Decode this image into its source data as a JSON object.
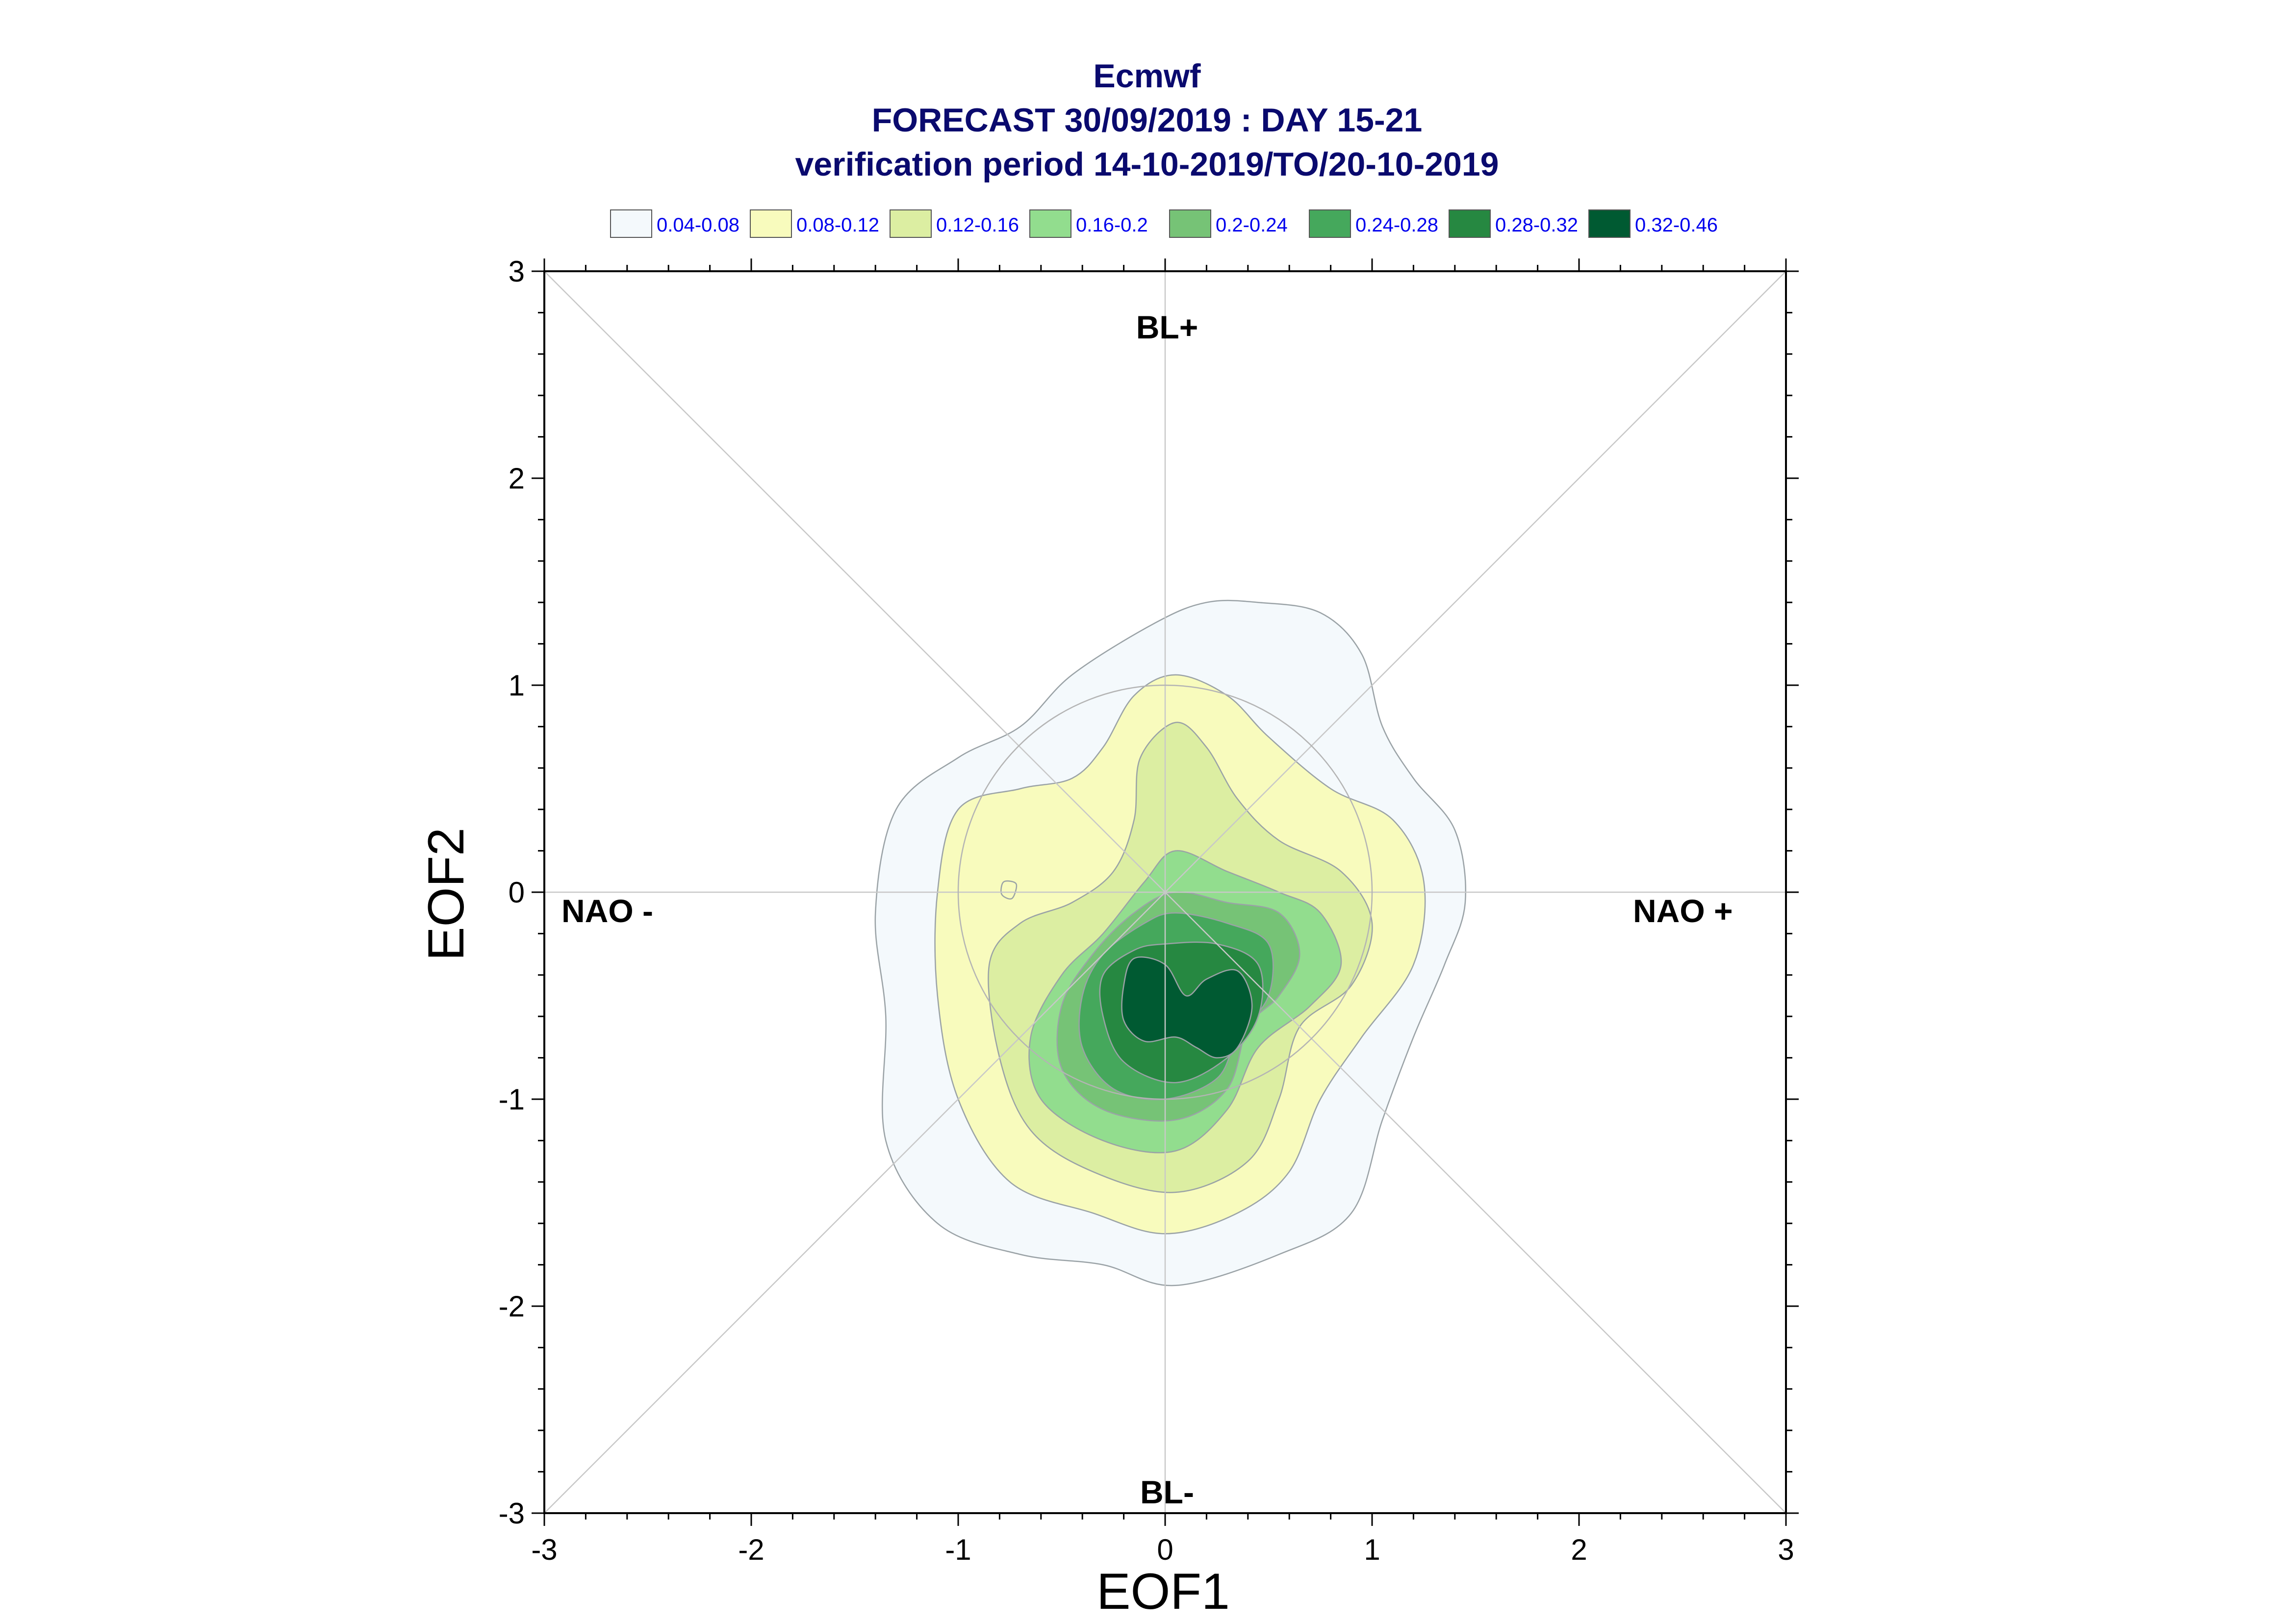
{
  "chart_data": {
    "type": "contour",
    "title": "Ecmwf",
    "subtitle_1": "FORECAST 30/09/2019 : DAY 15-21",
    "subtitle_2": "verification period 14-10-2019/TO/20-10-2019",
    "xlabel": "EOF1",
    "ylabel": "EOF2",
    "xlim": [
      -3,
      3
    ],
    "ylim": [
      -3,
      3
    ],
    "x_ticks": [
      -3,
      -2,
      -1,
      0,
      1,
      2,
      3
    ],
    "y_ticks": [
      -3,
      -2,
      -1,
      0,
      1,
      2,
      3
    ],
    "x_tick_labels": [
      "-3",
      "-2",
      "-1",
      "0",
      "1",
      "2",
      "3"
    ],
    "y_tick_labels": [
      "-3",
      "-2",
      "-1",
      "0",
      "1",
      "2",
      "3"
    ],
    "regions": {
      "top": "BL+",
      "bottom": "BL-",
      "left": "NAO -",
      "right": "NAO +"
    },
    "unit_circle_radius": 1,
    "grid": false,
    "legend_position": "top",
    "levels": [
      {
        "label": "0.04-0.08",
        "color": "#f4f9fc"
      },
      {
        "label": "0.08-0.12",
        "color": "#f8fbbd"
      },
      {
        "label": "0.12-0.16",
        "color": "#dceea2"
      },
      {
        "label": "0.16-0.2",
        "color": "#92dd8e"
      },
      {
        "label": "0.2-0.24",
        "color": "#76c376"
      },
      {
        "label": "0.24-0.28",
        "color": "#45a85c"
      },
      {
        "label": "0.28-0.32",
        "color": "#268841"
      },
      {
        "label": "0.32-0.46",
        "color": "#005a32"
      }
    ],
    "contours": [
      {
        "level": 0,
        "points": [
          [
            0.45,
            1.4
          ],
          [
            0.75,
            1.35
          ],
          [
            0.95,
            1.15
          ],
          [
            1.05,
            0.8
          ],
          [
            1.2,
            0.55
          ],
          [
            1.4,
            0.3
          ],
          [
            1.45,
            -0.05
          ],
          [
            1.35,
            -0.35
          ],
          [
            1.2,
            -0.7
          ],
          [
            1.05,
            -1.1
          ],
          [
            0.9,
            -1.55
          ],
          [
            0.55,
            -1.75
          ],
          [
            0.05,
            -1.9
          ],
          [
            -0.3,
            -1.8
          ],
          [
            -0.7,
            -1.75
          ],
          [
            -1.1,
            -1.6
          ],
          [
            -1.35,
            -1.2
          ],
          [
            -1.35,
            -0.6
          ],
          [
            -1.4,
            -0.1
          ],
          [
            -1.3,
            0.4
          ],
          [
            -1.0,
            0.65
          ],
          [
            -0.7,
            0.8
          ],
          [
            -0.45,
            1.05
          ],
          [
            -0.05,
            1.3
          ],
          [
            0.2,
            1.4
          ]
        ]
      },
      {
        "level": 1,
        "points": [
          [
            0.05,
            1.05
          ],
          [
            0.3,
            0.95
          ],
          [
            0.5,
            0.75
          ],
          [
            0.8,
            0.5
          ],
          [
            1.1,
            0.35
          ],
          [
            1.25,
            0.05
          ],
          [
            1.2,
            -0.35
          ],
          [
            0.95,
            -0.7
          ],
          [
            0.75,
            -1.0
          ],
          [
            0.6,
            -1.35
          ],
          [
            0.35,
            -1.55
          ],
          [
            0.0,
            -1.65
          ],
          [
            -0.35,
            -1.55
          ],
          [
            -0.75,
            -1.4
          ],
          [
            -1.0,
            -1.0
          ],
          [
            -1.1,
            -0.5
          ],
          [
            -1.1,
            0.0
          ],
          [
            -1.0,
            0.4
          ],
          [
            -0.7,
            0.5
          ],
          [
            -0.45,
            0.55
          ],
          [
            -0.3,
            0.7
          ],
          [
            -0.15,
            0.95
          ]
        ]
      },
      {
        "level": 2,
        "points": [
          [
            0.05,
            0.82
          ],
          [
            0.2,
            0.7
          ],
          [
            0.35,
            0.45
          ],
          [
            0.55,
            0.25
          ],
          [
            0.85,
            0.1
          ],
          [
            1.0,
            -0.15
          ],
          [
            0.9,
            -0.45
          ],
          [
            0.65,
            -0.65
          ],
          [
            0.55,
            -1.0
          ],
          [
            0.4,
            -1.3
          ],
          [
            0.05,
            -1.45
          ],
          [
            -0.35,
            -1.35
          ],
          [
            -0.65,
            -1.15
          ],
          [
            -0.8,
            -0.8
          ],
          [
            -0.85,
            -0.35
          ],
          [
            -0.7,
            -0.15
          ],
          [
            -0.45,
            -0.05
          ],
          [
            -0.25,
            0.1
          ],
          [
            -0.15,
            0.35
          ],
          [
            -0.12,
            0.65
          ]
        ]
      },
      {
        "level": 3,
        "points": [
          [
            0.05,
            0.2
          ],
          [
            0.3,
            0.1
          ],
          [
            0.55,
            0.0
          ],
          [
            0.75,
            -0.1
          ],
          [
            0.85,
            -0.35
          ],
          [
            0.7,
            -0.55
          ],
          [
            0.45,
            -0.75
          ],
          [
            0.3,
            -1.05
          ],
          [
            0.05,
            -1.25
          ],
          [
            -0.3,
            -1.2
          ],
          [
            -0.6,
            -1.0
          ],
          [
            -0.65,
            -0.7
          ],
          [
            -0.5,
            -0.4
          ],
          [
            -0.3,
            -0.2
          ],
          [
            -0.1,
            0.05
          ]
        ]
      },
      {
        "level": 4,
        "points": [
          [
            0.05,
            0.0
          ],
          [
            0.3,
            -0.05
          ],
          [
            0.55,
            -0.1
          ],
          [
            0.65,
            -0.3
          ],
          [
            0.55,
            -0.5
          ],
          [
            0.4,
            -0.65
          ],
          [
            0.3,
            -0.95
          ],
          [
            0.05,
            -1.1
          ],
          [
            -0.3,
            -1.05
          ],
          [
            -0.5,
            -0.85
          ],
          [
            -0.5,
            -0.55
          ],
          [
            -0.35,
            -0.3
          ],
          [
            -0.15,
            -0.1
          ]
        ]
      },
      {
        "level": 5,
        "points": [
          [
            0.05,
            -0.1
          ],
          [
            0.3,
            -0.15
          ],
          [
            0.5,
            -0.25
          ],
          [
            0.5,
            -0.5
          ],
          [
            0.35,
            -0.7
          ],
          [
            0.25,
            -0.9
          ],
          [
            0.0,
            -1.0
          ],
          [
            -0.25,
            -0.95
          ],
          [
            -0.4,
            -0.75
          ],
          [
            -0.4,
            -0.5
          ],
          [
            -0.3,
            -0.3
          ],
          [
            -0.1,
            -0.15
          ]
        ]
      },
      {
        "level": 6,
        "points": [
          [
            0.0,
            -0.25
          ],
          [
            0.25,
            -0.25
          ],
          [
            0.45,
            -0.35
          ],
          [
            0.45,
            -0.6
          ],
          [
            0.3,
            -0.8
          ],
          [
            0.05,
            -0.92
          ],
          [
            -0.2,
            -0.82
          ],
          [
            -0.3,
            -0.6
          ],
          [
            -0.3,
            -0.4
          ],
          [
            -0.15,
            -0.28
          ]
        ]
      },
      {
        "level": 7,
        "points": [
          [
            -0.15,
            -0.32
          ],
          [
            0.0,
            -0.35
          ],
          [
            0.1,
            -0.5
          ],
          [
            0.2,
            -0.42
          ],
          [
            0.35,
            -0.38
          ],
          [
            0.42,
            -0.55
          ],
          [
            0.35,
            -0.75
          ],
          [
            0.25,
            -0.8
          ],
          [
            0.15,
            -0.75
          ],
          [
            0.05,
            -0.7
          ],
          [
            -0.1,
            -0.72
          ],
          [
            -0.2,
            -0.62
          ],
          [
            -0.2,
            -0.45
          ]
        ]
      },
      {
        "level": 1,
        "points": [
          [
            -0.78,
            0.05
          ],
          [
            -0.72,
            0.04
          ],
          [
            -0.74,
            -0.03
          ],
          [
            -0.79,
            -0.01
          ]
        ]
      }
    ]
  }
}
